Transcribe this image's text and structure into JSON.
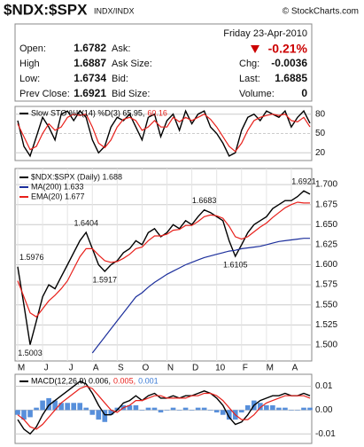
{
  "header": {
    "symbol": "$NDX:$SPX",
    "exchange": "INDX/INDX",
    "source": "© StockCharts.com"
  },
  "quote": {
    "date": "Friday  23-Apr-2010",
    "change_pct": "-0.21%",
    "left": [
      {
        "label": "Open:",
        "value": "1.6782"
      },
      {
        "label": "High",
        "value": "1.6887"
      },
      {
        "label": "Low:",
        "value": "1.6734"
      },
      {
        "label": "Prev Close:",
        "value": "1.6921"
      }
    ],
    "middle": [
      "Ask:",
      "Ask Size:",
      "Bid:",
      "Bid Size:"
    ],
    "right": [
      {
        "label": "Chg:",
        "value": "-0.0036"
      },
      {
        "label": "Last:",
        "value": "1.6885"
      },
      {
        "label": "Volume:",
        "value": "0"
      }
    ]
  },
  "chart_data": [
    {
      "type": "line",
      "series": [
        {
          "name": "Slow STO %K(14) %D(3) 65.95,",
          "color": "#000000",
          "values": [
            70,
            30,
            15,
            45,
            75,
            60,
            40,
            80,
            85,
            70,
            85,
            75,
            40,
            20,
            30,
            60,
            75,
            70,
            80,
            60,
            40,
            75,
            80,
            45,
            70,
            80,
            55,
            85,
            65,
            80,
            85,
            60,
            50,
            35,
            15,
            20,
            55,
            75,
            80,
            70,
            85,
            80,
            75,
            85,
            60,
            75,
            85,
            65.95
          ]
        },
        {
          "name": "60.16",
          "color": "#e8201b",
          "values": [
            65,
            45,
            25,
            30,
            50,
            65,
            55,
            60,
            75,
            80,
            78,
            80,
            60,
            35,
            28,
            40,
            60,
            72,
            75,
            70,
            55,
            60,
            70,
            60,
            60,
            75,
            68,
            75,
            70,
            75,
            80,
            72,
            60,
            45,
            30,
            22,
            35,
            55,
            70,
            75,
            78,
            80,
            78,
            80,
            70,
            68,
            75,
            60.16
          ]
        }
      ],
      "ylim": [
        8,
        92
      ],
      "yticks": [
        20,
        50,
        80
      ],
      "grid": true
    },
    {
      "type": "line",
      "categories": [
        "M",
        null,
        null,
        null,
        "J",
        null,
        null,
        null,
        "J",
        null,
        null,
        null,
        "A",
        null,
        null,
        null,
        "S",
        null,
        null,
        null,
        "O",
        null,
        null,
        null,
        "N",
        null,
        null,
        null,
        "D",
        null,
        null,
        null,
        "10",
        null,
        null,
        null,
        "F",
        null,
        null,
        null,
        "M",
        null,
        null,
        null,
        "A",
        null,
        null,
        null
      ],
      "series": [
        {
          "name": "$NDX:$SPX (Daily) 1.688",
          "color": "#000000",
          "values": [
            1.5976,
            1.55,
            1.5003,
            1.53,
            1.56,
            1.575,
            1.57,
            1.585,
            1.6,
            1.615,
            1.63,
            1.6404,
            1.62,
            1.6,
            1.5917,
            1.6,
            1.605,
            1.615,
            1.62,
            1.63,
            1.625,
            1.64,
            1.645,
            1.635,
            1.64,
            1.65,
            1.645,
            1.655,
            1.65,
            1.66,
            1.6683,
            1.665,
            1.66,
            1.655,
            1.63,
            1.6105,
            1.625,
            1.64,
            1.65,
            1.655,
            1.66,
            1.67,
            1.675,
            1.68,
            1.68,
            1.685,
            1.6921,
            1.688
          ],
          "value_labels": [
            "1.5976",
            null,
            "1.5003",
            null,
            null,
            null,
            null,
            null,
            null,
            null,
            null,
            "1.6404",
            null,
            null,
            "1.5917",
            null,
            null,
            null,
            null,
            null,
            null,
            null,
            null,
            null,
            null,
            null,
            null,
            null,
            null,
            null,
            "1.6683",
            null,
            null,
            null,
            null,
            "1.6105",
            null,
            null,
            null,
            null,
            null,
            null,
            null,
            null,
            null,
            null,
            "1.6921",
            null
          ]
        },
        {
          "name": "MA(200) 1.633",
          "color": "#1c2f9c",
          "values": [
            null,
            null,
            null,
            null,
            null,
            null,
            null,
            null,
            null,
            null,
            null,
            null,
            1.49,
            1.5,
            1.51,
            1.52,
            1.53,
            1.54,
            1.55,
            1.56,
            1.565,
            1.572,
            1.578,
            1.583,
            1.588,
            1.592,
            1.596,
            1.6,
            1.603,
            1.606,
            1.609,
            1.611,
            1.613,
            1.615,
            1.617,
            1.618,
            1.62,
            1.621,
            1.622,
            1.623,
            1.625,
            1.627,
            1.629,
            1.63,
            1.631,
            1.632,
            1.633,
            1.633
          ]
        },
        {
          "name": "EMA(20) 1.677",
          "color": "#e8201b",
          "values": [
            1.58,
            1.56,
            1.54,
            1.535,
            1.545,
            1.555,
            1.562,
            1.57,
            1.58,
            1.595,
            1.61,
            1.62,
            1.62,
            1.612,
            1.605,
            1.603,
            1.604,
            1.608,
            1.613,
            1.62,
            1.622,
            1.63,
            1.636,
            1.636,
            1.638,
            1.643,
            1.644,
            1.649,
            1.649,
            1.654,
            1.66,
            1.662,
            1.661,
            1.658,
            1.648,
            1.635,
            1.632,
            1.635,
            1.641,
            1.647,
            1.652,
            1.659,
            1.665,
            1.671,
            1.675,
            1.678,
            1.677,
            1.677
          ]
        }
      ],
      "ylim": [
        1.48,
        1.72
      ],
      "yticks": [
        {
          "value": 1.5,
          "label": "1.500"
        },
        1.525,
        {
          "value": 1.55,
          "label": "1.550"
        },
        1.575,
        {
          "value": 1.6,
          "label": "1.600"
        },
        1.625,
        {
          "value": 1.65,
          "label": "1.650"
        },
        1.675,
        {
          "value": 1.7,
          "label": "1.700"
        }
      ],
      "grid": true
    },
    {
      "type": "line",
      "series": [
        {
          "name": "MACD(12,26,9) 0.006,",
          "color": "#000000",
          "values": [
            -0.004,
            -0.008,
            -0.01,
            -0.007,
            -0.002,
            0.002,
            0.004,
            0.006,
            0.008,
            0.01,
            0.012,
            0.011,
            0.007,
            0.002,
            -0.002,
            -0.002,
            0.0,
            0.003,
            0.004,
            0.006,
            0.004,
            0.006,
            0.007,
            0.005,
            0.005,
            0.006,
            0.005,
            0.006,
            0.006,
            0.007,
            0.008,
            0.007,
            0.005,
            0.002,
            -0.003,
            -0.006,
            -0.005,
            -0.002,
            0.002,
            0.004,
            0.005,
            0.006,
            0.006,
            0.007,
            0.006,
            0.006,
            0.007,
            0.006
          ]
        },
        {
          "name": "0.005,",
          "color": "#e8201b",
          "values": [
            -0.002,
            -0.004,
            -0.007,
            -0.008,
            -0.006,
            -0.003,
            0.0,
            0.003,
            0.005,
            0.007,
            0.009,
            0.01,
            0.009,
            0.006,
            0.003,
            0.0,
            -0.001,
            0.001,
            0.002,
            0.004,
            0.004,
            0.005,
            0.006,
            0.006,
            0.005,
            0.005,
            0.005,
            0.005,
            0.006,
            0.006,
            0.007,
            0.007,
            0.006,
            0.004,
            0.001,
            -0.002,
            -0.004,
            -0.004,
            -0.002,
            0.001,
            0.003,
            0.004,
            0.005,
            0.006,
            0.006,
            0.006,
            0.006,
            0.005
          ]
        },
        {
          "name": "0.001",
          "color": "#3a7bd5",
          "type": "bar",
          "values": [
            -0.002,
            -0.004,
            -0.003,
            0.001,
            0.004,
            0.005,
            0.004,
            0.003,
            0.003,
            0.003,
            0.003,
            0.001,
            -0.002,
            -0.004,
            -0.005,
            -0.002,
            0.001,
            0.002,
            0.002,
            0.002,
            0.0,
            0.001,
            0.001,
            -0.001,
            0.0,
            0.001,
            0.0,
            0.001,
            0.0,
            0.001,
            0.001,
            0.0,
            -0.001,
            -0.002,
            -0.004,
            -0.004,
            -0.001,
            0.002,
            0.004,
            0.003,
            0.002,
            0.002,
            0.001,
            0.001,
            0.0,
            0.0,
            0.001,
            0.001
          ]
        }
      ],
      "ylim": [
        -0.014,
        0.015
      ],
      "yticks": [
        0.01,
        {
          "value": 0,
          "label": "0.00"
        },
        -0.01
      ],
      "grid": true
    }
  ]
}
